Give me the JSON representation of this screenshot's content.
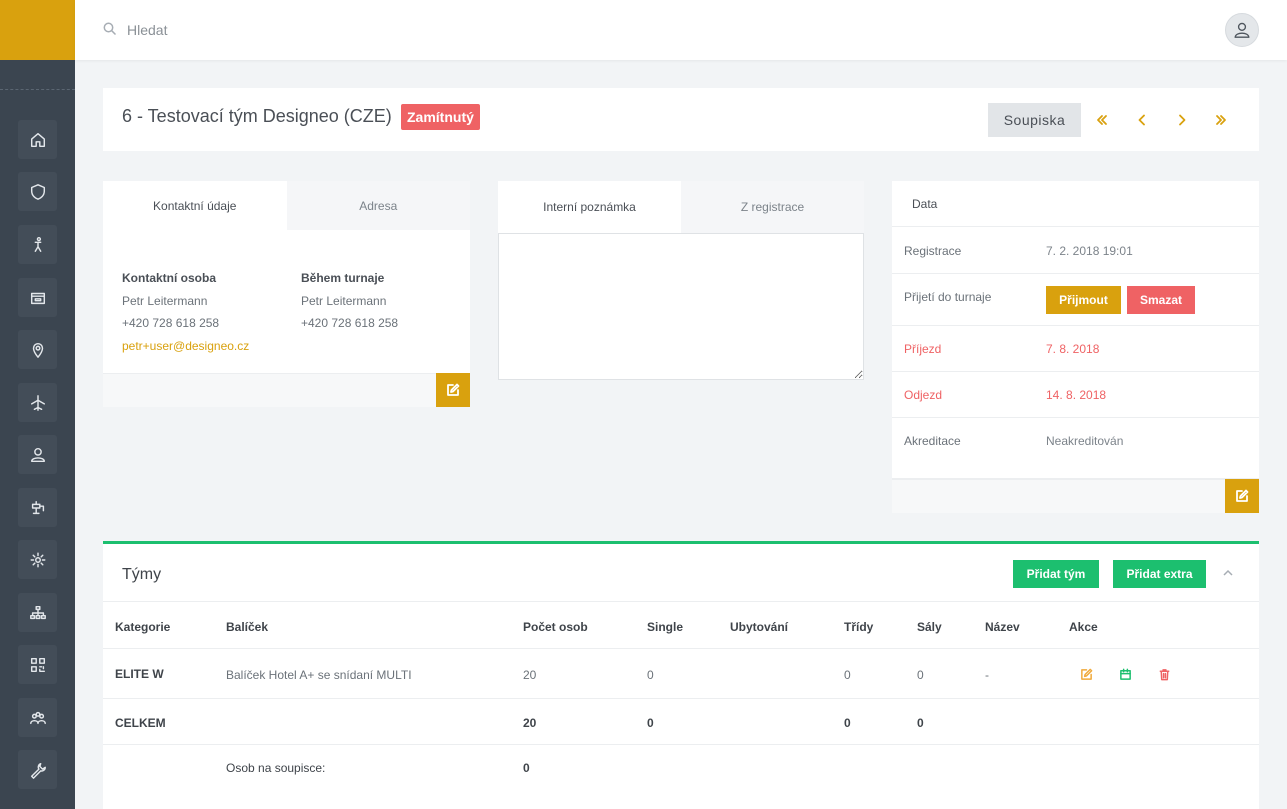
{
  "search": {
    "placeholder": "Hledat"
  },
  "sidebar": {
    "items": [
      {
        "icon": "home-icon"
      },
      {
        "icon": "shield-icon"
      },
      {
        "icon": "player-icon"
      },
      {
        "icon": "inbox-icon"
      },
      {
        "icon": "map-pin-icon"
      },
      {
        "icon": "airplane-icon"
      },
      {
        "icon": "user-icon"
      },
      {
        "icon": "faucet-icon"
      },
      {
        "icon": "gear-icon"
      },
      {
        "icon": "sitemap-icon"
      },
      {
        "icon": "qr-code-icon"
      },
      {
        "icon": "group-icon"
      },
      {
        "icon": "wrench-icon"
      }
    ]
  },
  "header": {
    "title": "6 - Testovací tým Designeo (CZE)",
    "status": "Zamítnutý",
    "roster_button": "Soupiska"
  },
  "contact": {
    "tabs": [
      "Kontaktní údaje",
      "Adresa"
    ],
    "contact_person_label": "Kontaktní osoba",
    "contact_person_name": "Petr Leitermann",
    "contact_person_phone": "+420 728 618 258",
    "contact_person_email": "petr+user@designeo.cz",
    "during_label": "Během turnaje",
    "during_name": "Petr Leitermann",
    "during_phone": "+420 728 618 258"
  },
  "note": {
    "tabs": [
      "Interní poznámka",
      "Z registrace"
    ],
    "value": ""
  },
  "data": {
    "title": "Data",
    "registration_label": "Registrace",
    "registration_value": "7. 2. 2018 19:01",
    "acceptance_label": "Přijetí do turnaje",
    "accept_button": "Přijmout",
    "delete_button": "Smazat",
    "arrival_label": "Příjezd",
    "arrival_value": "7. 8. 2018",
    "departure_label": "Odjezd",
    "departure_value": "14. 8. 2018",
    "accreditation_label": "Akreditace",
    "accreditation_value": "Neakreditován"
  },
  "teams": {
    "title": "Týmy",
    "add_team_button": "Přidat tým",
    "add_extra_button": "Přidat extra",
    "columns": [
      "Kategorie",
      "Balíček",
      "Počet osob",
      "Single",
      "Ubytování",
      "Třídy",
      "Sály",
      "Název",
      "Akce"
    ],
    "rows": [
      {
        "category": "ELITE W",
        "package": "Balíček Hotel A+ se snídaní MULTI",
        "persons": "20",
        "single": "0",
        "accommodation": "",
        "classes": "0",
        "halls": "0",
        "name": "-"
      }
    ],
    "total": {
      "label": "CELKEM",
      "persons": "20",
      "single": "0",
      "classes": "0",
      "halls": "0"
    },
    "roster": {
      "label": "Osob na soupisce:",
      "value": "0"
    },
    "colors": {
      "edit": "#f0a93a",
      "calendar": "#1cbf6f",
      "delete": "#ef6264"
    }
  }
}
